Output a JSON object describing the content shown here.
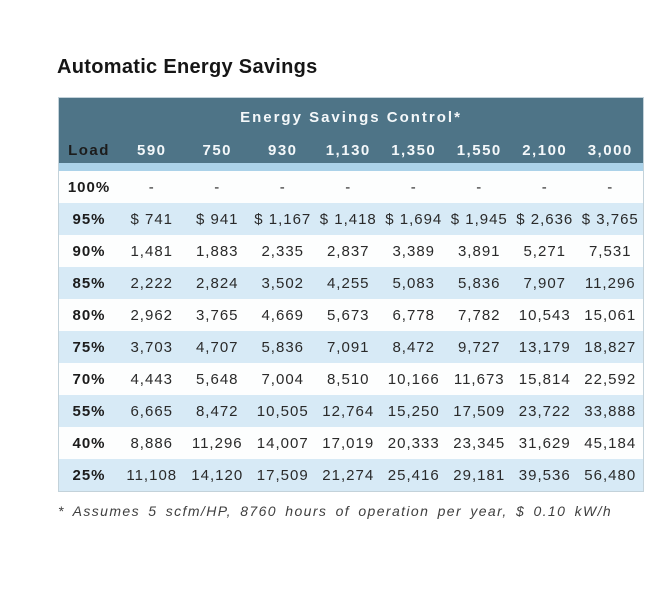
{
  "page_title": "Automatic Energy Savings",
  "chart_data": {
    "type": "table",
    "title": "Automatic Energy Savings",
    "band_header": "Energy Savings Control*",
    "columns": [
      "Load",
      "590",
      "750",
      "930",
      "1,130",
      "1,350",
      "1,550",
      "2,100",
      "3,000"
    ],
    "rows": [
      {
        "load": "100%",
        "values": [
          "-",
          "-",
          "-",
          "-",
          "-",
          "-",
          "-",
          "-"
        ]
      },
      {
        "load": "95%",
        "values": [
          "$ 741",
          "$ 941",
          "$ 1,167",
          "$ 1,418",
          "$ 1,694",
          "$ 1,945",
          "$ 2,636",
          "$ 3,765"
        ]
      },
      {
        "load": "90%",
        "values": [
          "1,481",
          "1,883",
          "2,335",
          "2,837",
          "3,389",
          "3,891",
          "5,271",
          "7,531"
        ]
      },
      {
        "load": "85%",
        "values": [
          "2,222",
          "2,824",
          "3,502",
          "4,255",
          "5,083",
          "5,836",
          "7,907",
          "11,296"
        ]
      },
      {
        "load": "80%",
        "values": [
          "2,962",
          "3,765",
          "4,669",
          "5,673",
          "6,778",
          "7,782",
          "10,543",
          "15,061"
        ]
      },
      {
        "load": "75%",
        "values": [
          "3,703",
          "4,707",
          "5,836",
          "7,091",
          "8,472",
          "9,727",
          "13,179",
          "18,827"
        ]
      },
      {
        "load": "70%",
        "values": [
          "4,443",
          "5,648",
          "7,004",
          "8,510",
          "10,166",
          "11,673",
          "15,814",
          "22,592"
        ]
      },
      {
        "load": "55%",
        "values": [
          "6,665",
          "8,472",
          "10,505",
          "12,764",
          "15,250",
          "17,509",
          "23,722",
          "33,888"
        ]
      },
      {
        "load": "40%",
        "values": [
          "8,886",
          "11,296",
          "14,007",
          "17,019",
          "20,333",
          "23,345",
          "31,629",
          "45,184"
        ]
      },
      {
        "load": "25%",
        "values": [
          "11,108",
          "14,120",
          "17,509",
          "21,274",
          "25,416",
          "29,181",
          "39,536",
          "56,480"
        ]
      }
    ],
    "footnote": "* Assumes 5 scfm/HP, 8760 hours of operation per year, $ 0.10 kW/h",
    "layout": {
      "alternating_row_shading": true,
      "first_data_row_shaded": false
    }
  },
  "colors": {
    "header_bg": "#4e7487",
    "header_text": "#f4f8fa",
    "accent_strip": "#abd2e9",
    "row_alt_bg": "#d7eaf6",
    "row_bg": "#fdfefe",
    "border": "#c3d2da",
    "body_text": "#2a2a2a"
  }
}
